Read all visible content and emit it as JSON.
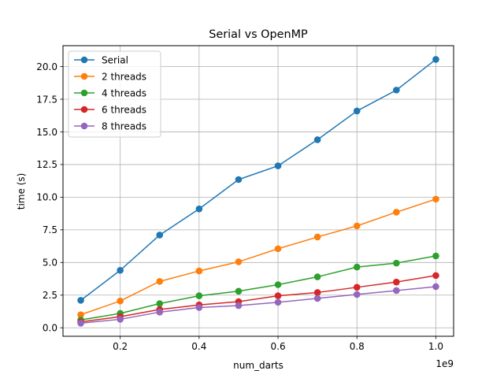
{
  "chart_data": {
    "type": "line",
    "title": "Serial vs OpenMP",
    "xlabel": "num_darts",
    "ylabel": "time (s)",
    "x_offset_label": "1e9",
    "x": [
      0.1,
      0.2,
      0.3,
      0.4,
      0.5,
      0.6,
      0.7,
      0.8,
      0.9,
      1.0
    ],
    "xlim": [
      0.055,
      1.045
    ],
    "ylim": [
      -0.65,
      21.6
    ],
    "xticks": [
      0.2,
      0.4,
      0.6,
      0.8,
      1.0
    ],
    "xtick_labels": [
      "0.2",
      "0.4",
      "0.6",
      "0.8",
      "1.0"
    ],
    "yticks": [
      0,
      2.5,
      5,
      7.5,
      10,
      12.5,
      15,
      17.5,
      20
    ],
    "ytick_labels": [
      "0.0",
      "2.5",
      "5.0",
      "7.5",
      "10.0",
      "12.5",
      "15.0",
      "17.5",
      "20.0"
    ],
    "grid": true,
    "legend_position": "top-left",
    "series": [
      {
        "name": "Serial",
        "color": "#1f77b4",
        "values": [
          2.1,
          4.4,
          7.1,
          9.1,
          11.35,
          12.4,
          14.4,
          16.6,
          18.2,
          20.55
        ]
      },
      {
        "name": "2 threads",
        "color": "#ff7f0e",
        "values": [
          1.0,
          2.05,
          3.55,
          4.35,
          5.05,
          6.05,
          6.95,
          7.8,
          8.85,
          9.85
        ]
      },
      {
        "name": "4 threads",
        "color": "#2ca02c",
        "values": [
          0.6,
          1.1,
          1.85,
          2.45,
          2.8,
          3.3,
          3.9,
          4.65,
          4.95,
          5.5
        ]
      },
      {
        "name": "6 threads",
        "color": "#d62728",
        "values": [
          0.45,
          0.85,
          1.4,
          1.75,
          2.0,
          2.45,
          2.7,
          3.1,
          3.5,
          4.0
        ]
      },
      {
        "name": "8 threads",
        "color": "#9467bd",
        "values": [
          0.35,
          0.65,
          1.2,
          1.55,
          1.7,
          1.95,
          2.25,
          2.55,
          2.85,
          3.15
        ]
      }
    ]
  }
}
